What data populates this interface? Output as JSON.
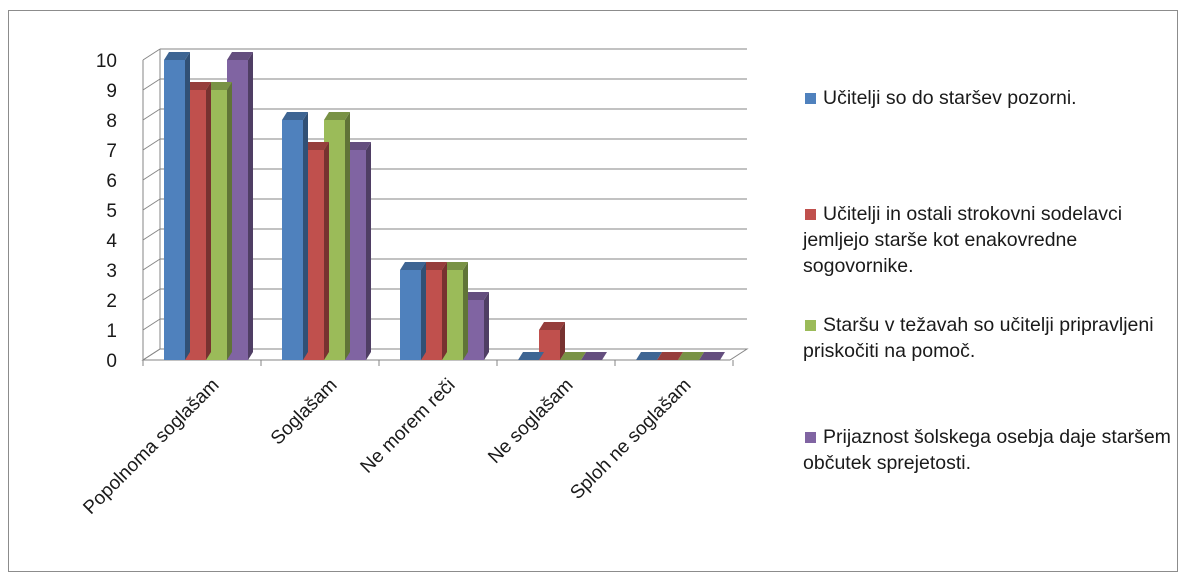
{
  "chart_data": {
    "type": "bar",
    "style": "3d-clustered",
    "categories": [
      "Popolnoma soglašam",
      "Soglašam",
      "Ne morem reči",
      "Ne soglašam",
      "Sploh ne soglašam"
    ],
    "series": [
      {
        "name": "Učitelji so do staršev pozorni.",
        "color": "#4f81bd",
        "values": [
          10,
          8,
          3,
          0,
          0
        ]
      },
      {
        "name": "Učitelji in ostali strokovni sodelavci jemljejo starše kot enakovredne sogovornike.",
        "color": "#c0504d",
        "values": [
          9,
          7,
          3,
          1,
          0
        ]
      },
      {
        "name": "Staršu v težavah so učitelji pripravljeni priskočiti na pomoč.",
        "color": "#9bbb59",
        "values": [
          9,
          8,
          3,
          0,
          0
        ]
      },
      {
        "name": "Prijaznost šolskega osebja daje staršem občutek sprejetosti.",
        "color": "#8064a2",
        "values": [
          10,
          7,
          2,
          0,
          0
        ]
      }
    ],
    "yticks": [
      0,
      1,
      2,
      3,
      4,
      5,
      6,
      7,
      8,
      9,
      10
    ],
    "ylim": [
      0,
      10
    ],
    "grid": true,
    "legend": "right"
  }
}
